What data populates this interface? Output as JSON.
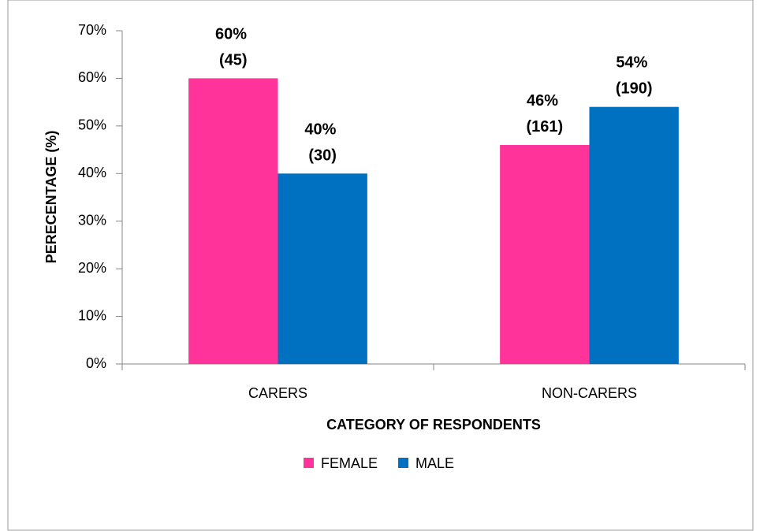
{
  "chart_data": {
    "type": "bar",
    "categories": [
      "CARERS",
      "NON-CARERS"
    ],
    "series": [
      {
        "name": "FEMALE",
        "color": "#ff3399",
        "values": [
          60,
          46
        ],
        "value_labels": [
          "60% (45)",
          "46% (161)"
        ]
      },
      {
        "name": "MALE",
        "color": "#0070c0",
        "values": [
          40,
          54
        ],
        "value_labels": [
          "40% (30)",
          "54% (190)"
        ]
      }
    ],
    "ylim": [
      0,
      70
    ],
    "yticks": [
      {
        "value": 0,
        "label": "0%"
      },
      {
        "value": 10,
        "label": "10%"
      },
      {
        "value": 20,
        "label": "20%"
      },
      {
        "value": 30,
        "label": "30%"
      },
      {
        "value": 40,
        "label": "40%"
      },
      {
        "value": 50,
        "label": "50%"
      },
      {
        "value": 60,
        "label": "60%"
      },
      {
        "value": 70,
        "label": "70%"
      }
    ],
    "xlabel": "CATEGORY OF RESPONDENTS",
    "ylabel": "PERECENTAGE (%)",
    "legend": "bottom",
    "grid": false
  }
}
